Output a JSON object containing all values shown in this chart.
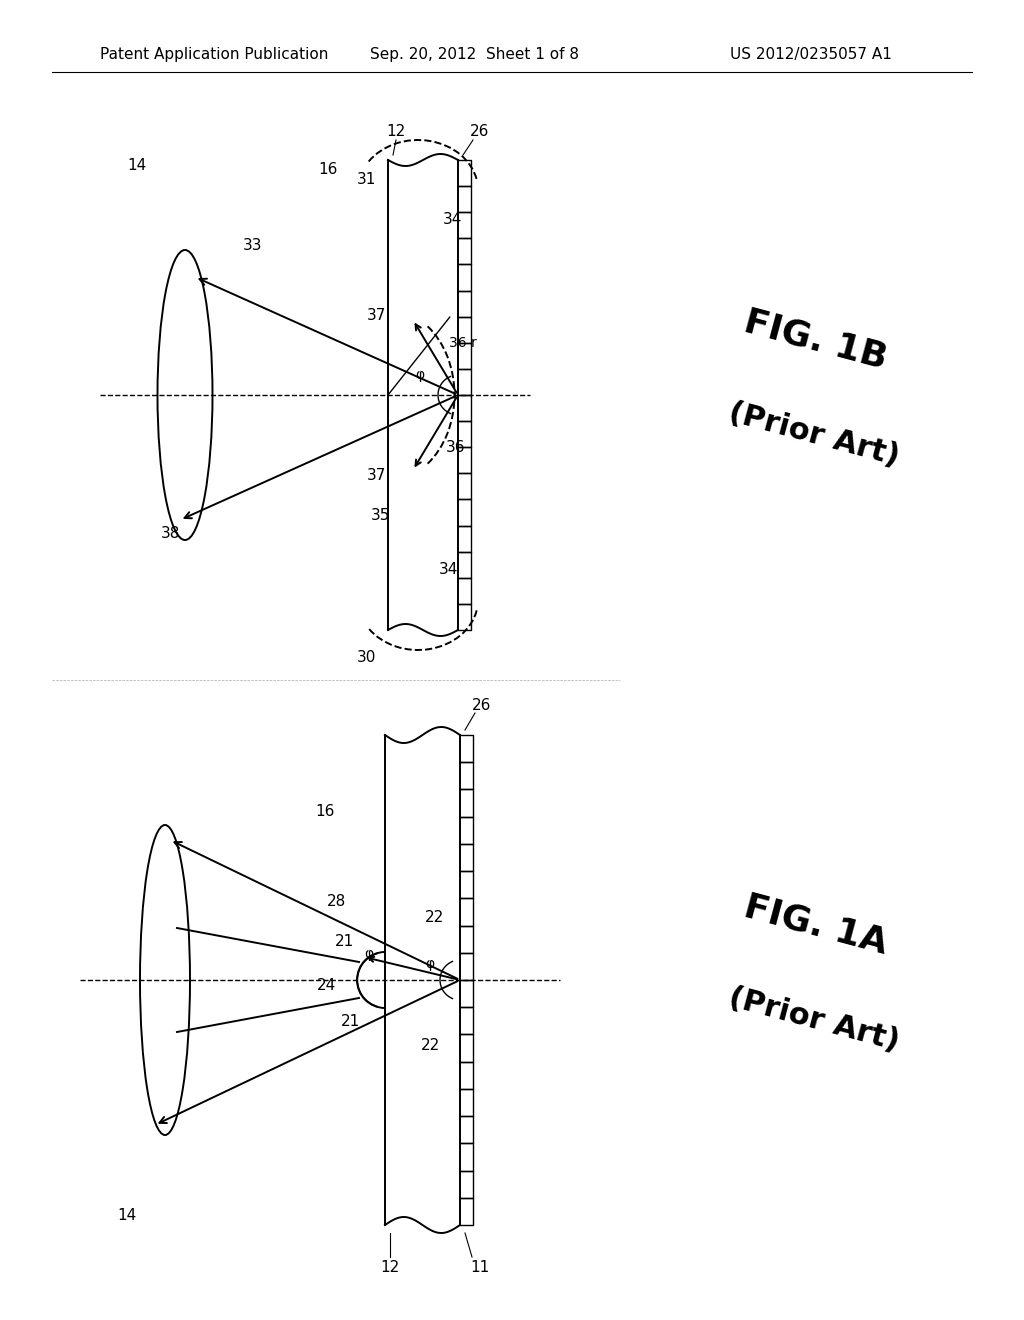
{
  "background_color": "#ffffff",
  "header_text": "Patent Application Publication",
  "header_date": "Sep. 20, 2012  Sheet 1 of 8",
  "header_patent": "US 2012/0235057 A1"
}
